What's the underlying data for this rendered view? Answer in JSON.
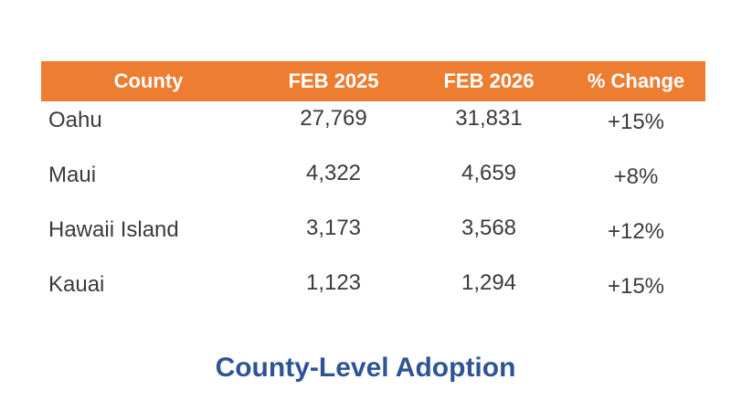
{
  "colors": {
    "background": "#FFFFFF",
    "header_bg": "#ED7D31",
    "header_text": "#FFFFFF",
    "body_text": "#3B3B3B",
    "caption_text": "#2F5496"
  },
  "table": {
    "columns": [
      "County",
      "FEB 2025",
      "FEB 2026",
      "% Change"
    ],
    "rows": [
      {
        "county": "Oahu",
        "feb2025": "27,769",
        "feb2026": "31,831",
        "change": "+15%"
      },
      {
        "county": "Maui",
        "feb2025": "4,322",
        "feb2026": "4,659",
        "change": "+8%"
      },
      {
        "county": "Hawaii Island",
        "feb2025": "3,173",
        "feb2026": "3,568",
        "change": "+12%"
      },
      {
        "county": "Kauai",
        "feb2025": "1,123",
        "feb2026": "1,294",
        "change": "+15%"
      }
    ]
  },
  "caption": {
    "text": "County-Level Adoption"
  }
}
